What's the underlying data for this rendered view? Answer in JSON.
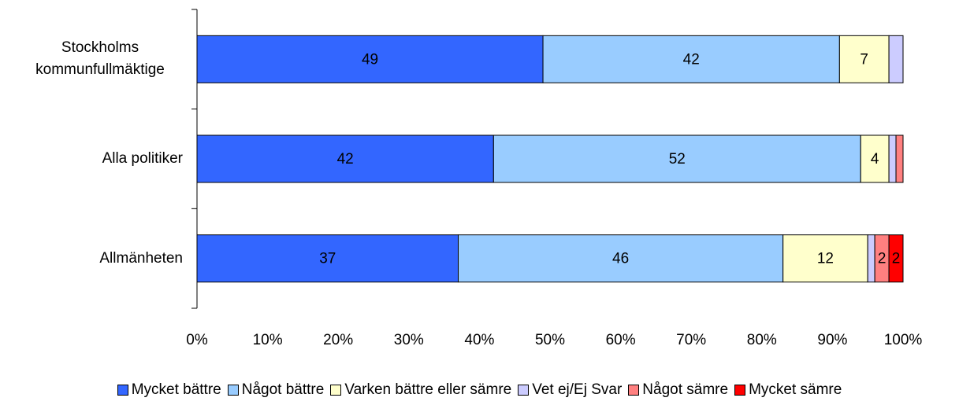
{
  "chart_data": {
    "type": "stacked_bar_horizontal",
    "categories": [
      "Stockholms kommunfullmäktige",
      "Alla politiker",
      "Allmänheten"
    ],
    "series": [
      {
        "name": "Mycket bättre",
        "color": "#3366ff",
        "values": [
          49,
          42,
          37
        ],
        "value_labels": [
          49,
          42,
          37
        ]
      },
      {
        "name": "Något bättre",
        "color": "#99ccff",
        "values": [
          42,
          52,
          46
        ],
        "value_labels": [
          42,
          52,
          46
        ]
      },
      {
        "name": "Varken bättre eller sämre",
        "color": "#ffffcc",
        "values": [
          7,
          4,
          12
        ],
        "value_labels": [
          7,
          4,
          12
        ]
      },
      {
        "name": "Vet ej/Ej Svar",
        "color": "#ccccff",
        "values": [
          2,
          1,
          1
        ],
        "value_labels": [
          null,
          null,
          null
        ]
      },
      {
        "name": "Något sämre",
        "color": "#ff8080",
        "values": [
          0,
          1,
          2
        ],
        "value_labels": [
          null,
          null,
          2
        ]
      },
      {
        "name": "Mycket sämre",
        "color": "#ff0000",
        "values": [
          0,
          0,
          2
        ],
        "value_labels": [
          null,
          null,
          2
        ]
      }
    ],
    "xlim": [
      0,
      100
    ],
    "xticks": [
      {
        "value": 0,
        "label": "0%"
      },
      {
        "value": 10,
        "label": "10%"
      },
      {
        "value": 20,
        "label": "20%"
      },
      {
        "value": 30,
        "label": "30%"
      },
      {
        "value": 40,
        "label": "40%"
      },
      {
        "value": 50,
        "label": "50%"
      },
      {
        "value": 60,
        "label": "60%"
      },
      {
        "value": 70,
        "label": "70%"
      },
      {
        "value": 80,
        "label": "80%"
      },
      {
        "value": 90,
        "label": "90%"
      },
      {
        "value": 100,
        "label": "100%"
      }
    ],
    "legend": "bottom"
  }
}
